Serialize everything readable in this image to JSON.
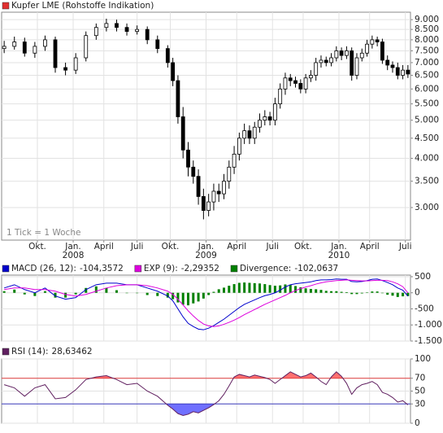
{
  "chart_data": [
    {
      "type": "candlestick",
      "title": "Kupfer LME (Rohstoffe Indikation)",
      "title_color": "#e03030",
      "annotation": "1 Tick = 1 Woche",
      "log_scale": true,
      "grid": true,
      "up_color": "#ffffff",
      "down_color": "#000000",
      "x": [
        0,
        4,
        8,
        12,
        16,
        20,
        24,
        28,
        32,
        36,
        40,
        44,
        48,
        52,
        56,
        60,
        64,
        66,
        68,
        70,
        72,
        74,
        76,
        78,
        80,
        82,
        84,
        86,
        88,
        90,
        92,
        94,
        96,
        98,
        100,
        102,
        104,
        106,
        108,
        110,
        112,
        114,
        116,
        118,
        120,
        122,
        124,
        126,
        128,
        130,
        132,
        134,
        136,
        138,
        140,
        142,
        144,
        146,
        148,
        150,
        152,
        154,
        156,
        158
      ],
      "open": [
        7600,
        7700,
        7900,
        7400,
        7700,
        8000,
        6800,
        6700,
        7200,
        8200,
        8600,
        8800,
        8600,
        8400,
        8500,
        8000,
        7600,
        7000,
        6300,
        5100,
        4200,
        3800,
        3600,
        3200,
        2950,
        3100,
        3300,
        3250,
        3500,
        3800,
        4100,
        4500,
        4700,
        4500,
        4800,
        5000,
        5100,
        5000,
        5500,
        6000,
        6400,
        6300,
        6200,
        6000,
        6400,
        6500,
        7000,
        7100,
        7000,
        7200,
        7500,
        7300,
        7500,
        6500,
        7200,
        7400,
        7800,
        8000,
        7900,
        7100,
        6900,
        6800,
        6500,
        6700
      ],
      "high": [
        7950,
        8150,
        8100,
        7900,
        8200,
        8150,
        7000,
        7400,
        8400,
        8800,
        9050,
        9000,
        8800,
        8700,
        8650,
        8200,
        7750,
        7200,
        6500,
        5400,
        4400,
        3950,
        3750,
        3350,
        3250,
        3450,
        3450,
        3650,
        3950,
        4300,
        4650,
        4900,
        4850,
        4950,
        5200,
        5300,
        5250,
        5700,
        6200,
        6600,
        6550,
        6450,
        6350,
        6550,
        6700,
        7200,
        7300,
        7250,
        7400,
        7700,
        7650,
        7700,
        7650,
        7400,
        7600,
        8000,
        8200,
        8150,
        8050,
        7300,
        7050,
        7000,
        6900,
        6900
      ],
      "low": [
        7400,
        7550,
        7250,
        7200,
        7500,
        6600,
        6500,
        6550,
        7050,
        8000,
        8400,
        8400,
        8200,
        8250,
        7800,
        7400,
        6800,
        6100,
        4900,
        4000,
        3600,
        3450,
        3050,
        2800,
        2850,
        2950,
        3100,
        3150,
        3350,
        3650,
        3950,
        4350,
        4350,
        4350,
        4650,
        4850,
        4850,
        4850,
        5350,
        5800,
        6100,
        6050,
        5850,
        5850,
        6250,
        6300,
        6800,
        6850,
        6850,
        7050,
        7100,
        7150,
        6300,
        6350,
        7050,
        7250,
        7600,
        7700,
        6950,
        6700,
        6600,
        6350,
        6350,
        6400
      ],
      "close": [
        7700,
        7900,
        7400,
        7700,
        8000,
        6800,
        6700,
        7200,
        8200,
        8600,
        8800,
        8600,
        8400,
        8500,
        8000,
        7600,
        7000,
        6300,
        5100,
        4200,
        3800,
        3600,
        3200,
        2950,
        3100,
        3300,
        3250,
        3500,
        3800,
        4100,
        4500,
        4700,
        4500,
        4800,
        5000,
        5100,
        5000,
        5500,
        6000,
        6400,
        6300,
        6200,
        6000,
        6400,
        6500,
        7000,
        7100,
        7000,
        7200,
        7500,
        7300,
        7500,
        6500,
        7200,
        7400,
        7800,
        8000,
        7900,
        7100,
        6900,
        6800,
        6500,
        6700,
        6550
      ],
      "xlim": [
        -1,
        159
      ],
      "xticks": [
        {
          "value": 13,
          "label": "Okt."
        },
        {
          "value": 27,
          "label": "Jan.",
          "year": "2008"
        },
        {
          "value": 39,
          "label": "April"
        },
        {
          "value": 52,
          "label": "Juli"
        },
        {
          "value": 65,
          "label": "Okt."
        },
        {
          "value": 79,
          "label": "Jan.",
          "year": "2009"
        },
        {
          "value": 91,
          "label": "April"
        },
        {
          "value": 105,
          "label": "Juli"
        },
        {
          "value": 117,
          "label": "Okt."
        },
        {
          "value": 131,
          "label": "Jan.",
          "year": "2010"
        },
        {
          "value": 143,
          "label": "April"
        },
        {
          "value": 157,
          "label": "Juli"
        }
      ],
      "ylim": [
        2480,
        9400
      ],
      "yticks": [
        {
          "value": 3000,
          "label": "3.000"
        },
        {
          "value": 3500,
          "label": "3.500"
        },
        {
          "value": 4000,
          "label": "4.000"
        },
        {
          "value": 4500,
          "label": "4.500"
        },
        {
          "value": 5000,
          "label": "5.000"
        },
        {
          "value": 5500,
          "label": "5.500"
        },
        {
          "value": 6000,
          "label": "6.000"
        },
        {
          "value": 6500,
          "label": "6.500"
        },
        {
          "value": 7000,
          "label": "7.000"
        },
        {
          "value": 7500,
          "label": "7.500"
        },
        {
          "value": 8000,
          "label": "8.000"
        },
        {
          "value": 8500,
          "label": "8.500"
        },
        {
          "value": 9000,
          "label": "9.000"
        }
      ]
    },
    {
      "type": "combo",
      "grid": true,
      "series": [
        {
          "name": "MACD (26, 12):",
          "kind": "line",
          "color": "#0000cc",
          "current": {
            "value": -104.3572,
            "label": "-104,3572"
          },
          "values": [
            150,
            250,
            100,
            0,
            150,
            -100,
            -200,
            -150,
            100,
            250,
            300,
            300,
            250,
            250,
            150,
            50,
            -100,
            -250,
            -500,
            -750,
            -950,
            -1050,
            -1130,
            -1150,
            -1100,
            -1020,
            -920,
            -820,
            -700,
            -580,
            -460,
            -360,
            -290,
            -220,
            -150,
            -90,
            -50,
            0,
            80,
            180,
            250,
            280,
            300,
            320,
            340,
            380,
            400,
            400,
            410,
            430,
            420,
            420,
            350,
            340,
            350,
            380,
            420,
            430,
            380,
            320,
            250,
            150,
            80,
            -104.3572
          ]
        },
        {
          "name": "EXP (9):",
          "kind": "line",
          "color": "#dd00dd",
          "current": {
            "value": -2.29352,
            "label": "-2,29352"
          },
          "values": [
            100,
            150,
            150,
            100,
            100,
            50,
            -50,
            -100,
            -50,
            50,
            150,
            220,
            250,
            250,
            220,
            150,
            50,
            -50,
            -200,
            -380,
            -560,
            -720,
            -860,
            -970,
            -1030,
            -1050,
            -1030,
            -980,
            -920,
            -850,
            -770,
            -680,
            -600,
            -520,
            -440,
            -360,
            -290,
            -220,
            -150,
            -80,
            0,
            70,
            130,
            180,
            220,
            270,
            310,
            340,
            360,
            380,
            390,
            400,
            390,
            380,
            370,
            370,
            380,
            390,
            390,
            380,
            340,
            280,
            190,
            -2.29352
          ]
        },
        {
          "name": "Divergence:",
          "kind": "bar",
          "color": "#008000",
          "current": {
            "value": -102.0637,
            "label": "-102,0637"
          },
          "values": [
            50,
            100,
            -50,
            -100,
            50,
            -150,
            -150,
            -50,
            150,
            200,
            150,
            80,
            0,
            0,
            -70,
            -100,
            -150,
            -200,
            -300,
            -370,
            -390,
            -330,
            -270,
            -180,
            -70,
            30,
            110,
            160,
            220,
            270,
            310,
            320,
            310,
            300,
            290,
            270,
            240,
            220,
            230,
            260,
            250,
            210,
            170,
            140,
            120,
            110,
            90,
            60,
            50,
            50,
            30,
            20,
            -40,
            -40,
            -20,
            10,
            40,
            40,
            -10,
            -60,
            -90,
            -130,
            -110,
            -102.0637
          ]
        }
      ],
      "ylim": [
        -1500,
        550
      ],
      "yticks": [
        500,
        0,
        -500,
        {
          "value": -1000,
          "label": "-1.000"
        },
        {
          "value": -1500,
          "label": "-1.500"
        }
      ]
    },
    {
      "type": "line",
      "grid": true,
      "series": [
        {
          "name": "RSI (14):",
          "color": "#602060",
          "current": {
            "value": 28.63462,
            "label": "28,63462"
          },
          "values": [
            60,
            55,
            42,
            55,
            60,
            38,
            40,
            52,
            68,
            72,
            74,
            68,
            60,
            62,
            50,
            42,
            28,
            22,
            15,
            12,
            14,
            18,
            16,
            20,
            24,
            29,
            35,
            45,
            58,
            72,
            76,
            74,
            72,
            75,
            73,
            71,
            68,
            62,
            68,
            74,
            80,
            76,
            72,
            74,
            78,
            72,
            65,
            60,
            72,
            80,
            73,
            62,
            45,
            55,
            60,
            62,
            65,
            60,
            48,
            45,
            40,
            33,
            35,
            28.63462
          ]
        }
      ],
      "upper_band": {
        "value": 70,
        "color": "#e04040",
        "fill": "#ff7070"
      },
      "lower_band": {
        "value": 30,
        "color": "#4040c0",
        "fill": "#7070ff"
      },
      "ylim": [
        0,
        100
      ],
      "yticks": [
        0,
        30,
        50,
        70,
        100
      ]
    }
  ]
}
